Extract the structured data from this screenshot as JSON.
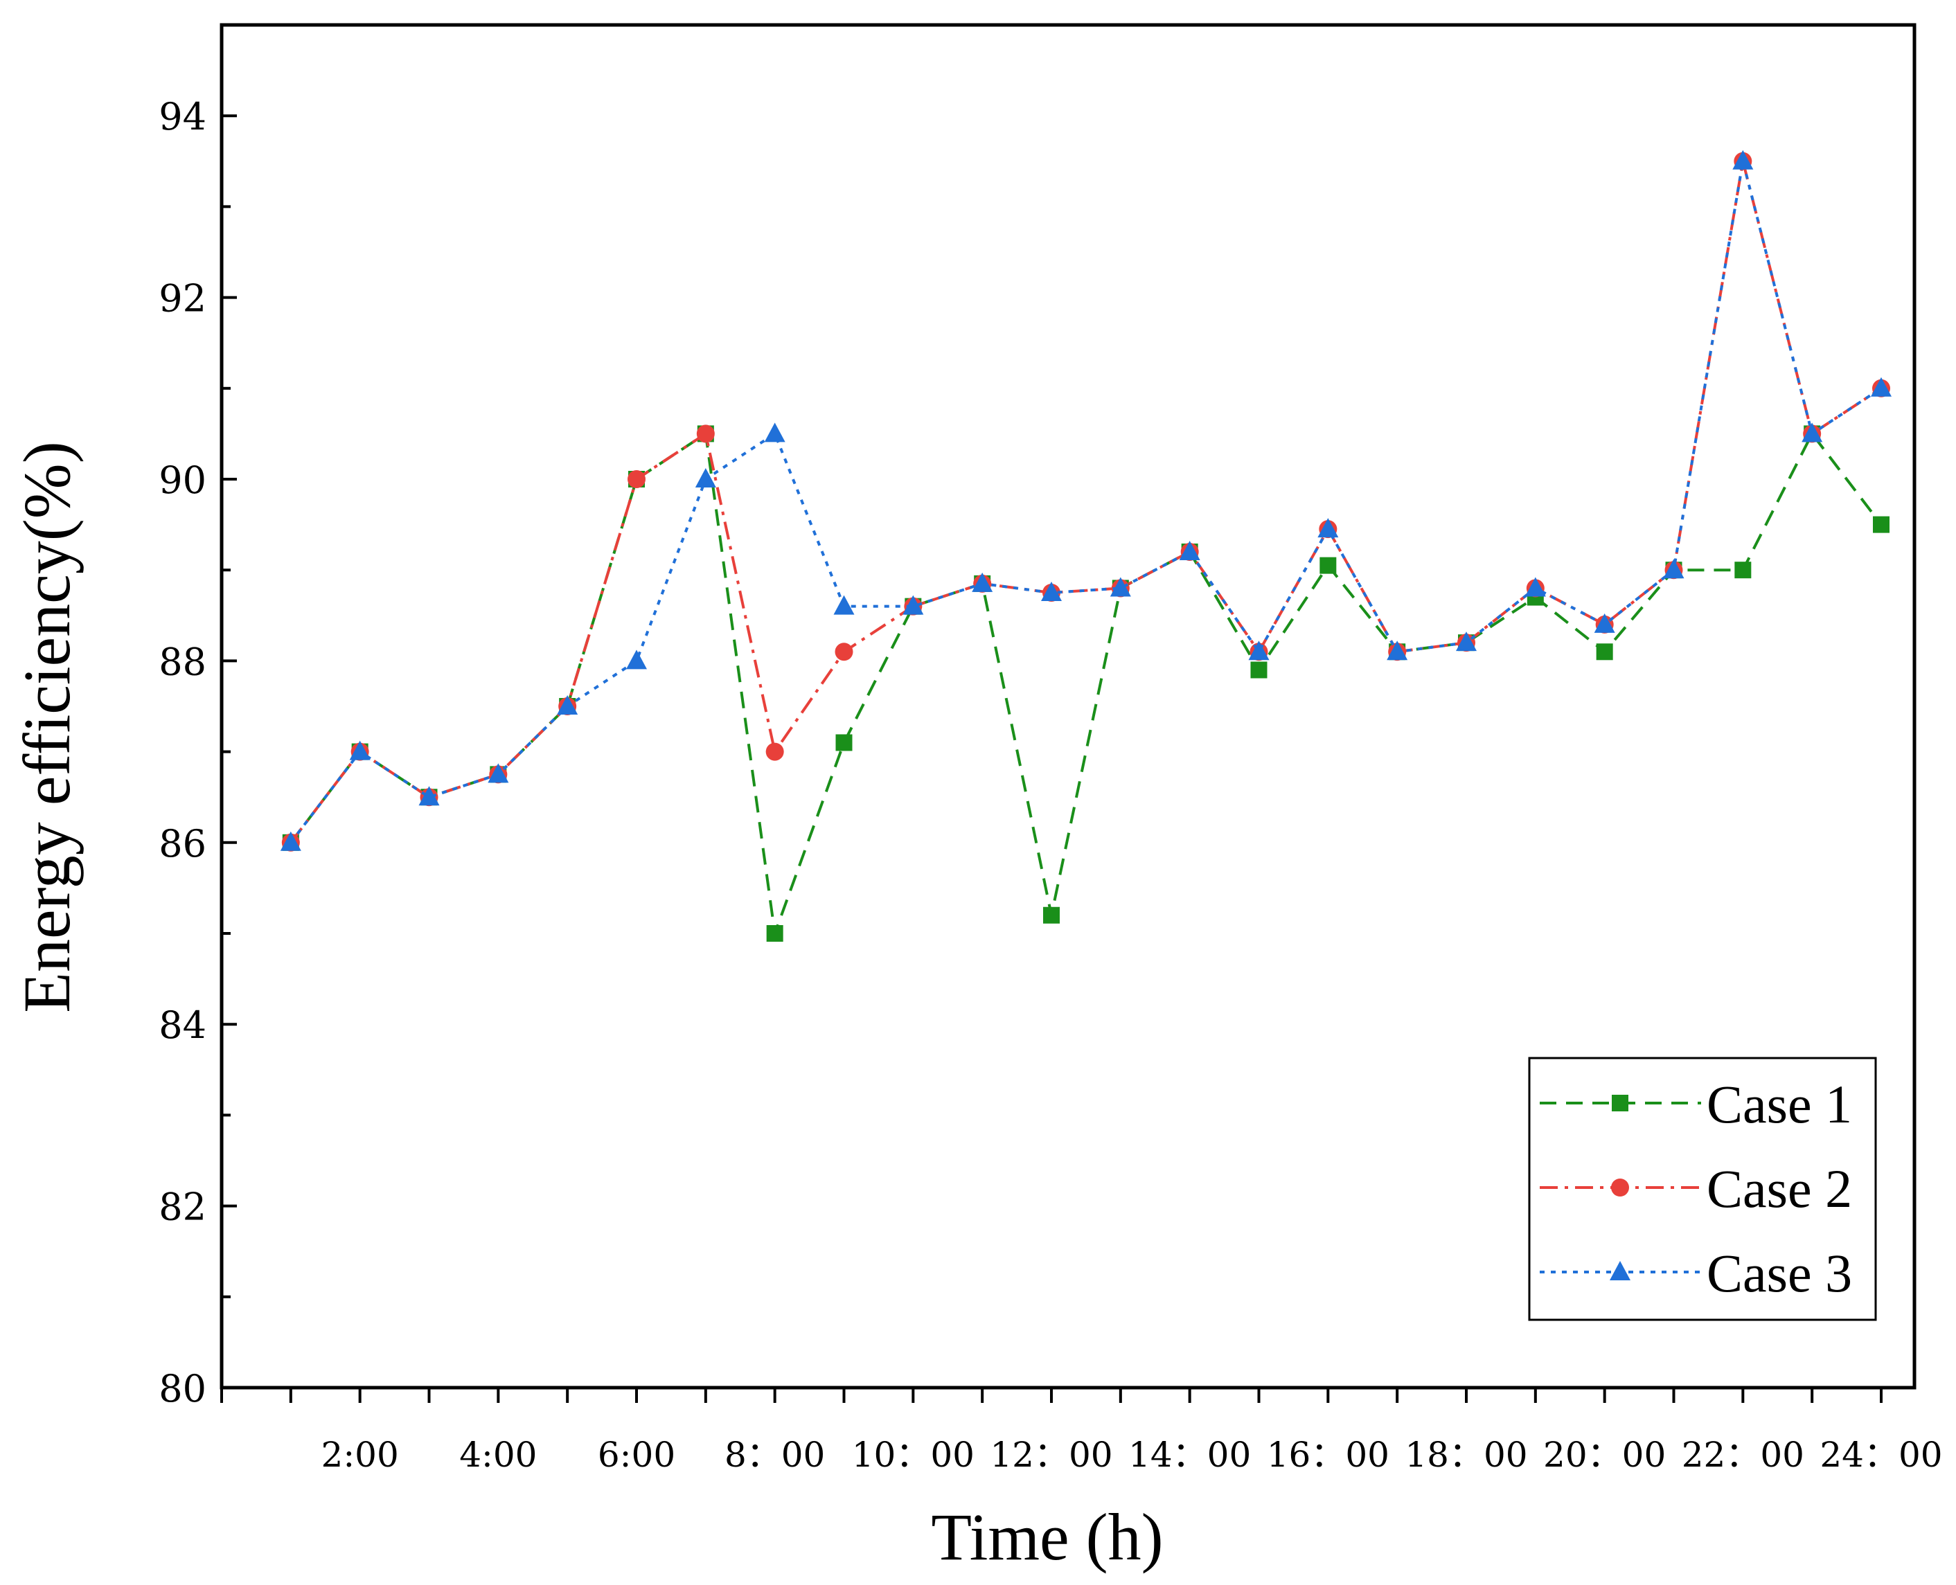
{
  "chart_data": {
    "type": "line",
    "title": "",
    "xlabel": "Time (h)",
    "ylabel": "Energy efficiency(%)",
    "xlim": [
      0,
      24.5
    ],
    "ylim": [
      80,
      95
    ],
    "y_ticks": [
      80,
      82,
      84,
      86,
      88,
      90,
      92,
      94
    ],
    "x_tick_labels": [
      {
        "x": 2,
        "label": "2:00"
      },
      {
        "x": 4,
        "label": "4:00"
      },
      {
        "x": 6,
        "label": "6:00"
      },
      {
        "x": 8,
        "label": "8：00"
      },
      {
        "x": 10,
        "label": "10：00"
      },
      {
        "x": 12,
        "label": "12：00"
      },
      {
        "x": 14,
        "label": "14：00"
      },
      {
        "x": 16,
        "label": "16：00"
      },
      {
        "x": 18,
        "label": "18：00"
      },
      {
        "x": 20,
        "label": "20：00"
      },
      {
        "x": 22,
        "label": "22：00"
      },
      {
        "x": 24,
        "label": "24：00"
      }
    ],
    "x": [
      1,
      2,
      3,
      4,
      5,
      6,
      7,
      8,
      9,
      10,
      11,
      12,
      13,
      14,
      15,
      16,
      17,
      18,
      19,
      20,
      21,
      22,
      23,
      24
    ],
    "series": [
      {
        "name": "Case 1",
        "color": "#1a8f1a",
        "line_style": "dashed",
        "marker": "square",
        "values": [
          86.0,
          87.0,
          86.5,
          86.75,
          87.5,
          90.0,
          90.5,
          85.0,
          87.1,
          88.6,
          88.85,
          85.2,
          88.8,
          89.2,
          87.9,
          89.05,
          88.1,
          88.2,
          88.7,
          88.1,
          89.0,
          89.0,
          90.5,
          89.5
        ]
      },
      {
        "name": "Case 2",
        "color": "#e8403a",
        "line_style": "dashdot",
        "marker": "circle",
        "values": [
          86.0,
          87.0,
          86.5,
          86.75,
          87.5,
          90.0,
          90.5,
          87.0,
          88.1,
          88.6,
          88.85,
          88.75,
          88.8,
          89.2,
          88.1,
          89.45,
          88.1,
          88.2,
          88.8,
          88.4,
          89.0,
          93.5,
          90.5,
          91.0
        ]
      },
      {
        "name": "Case 3",
        "color": "#2070d8",
        "line_style": "dotted",
        "marker": "triangle",
        "values": [
          86.0,
          87.0,
          86.5,
          86.75,
          87.5,
          88.0,
          90.0,
          90.5,
          88.6,
          88.6,
          88.85,
          88.75,
          88.8,
          89.2,
          88.1,
          89.45,
          88.1,
          88.2,
          88.8,
          88.4,
          89.0,
          93.5,
          90.5,
          91.0
        ]
      }
    ],
    "legend": {
      "position": "bottom-right"
    }
  }
}
